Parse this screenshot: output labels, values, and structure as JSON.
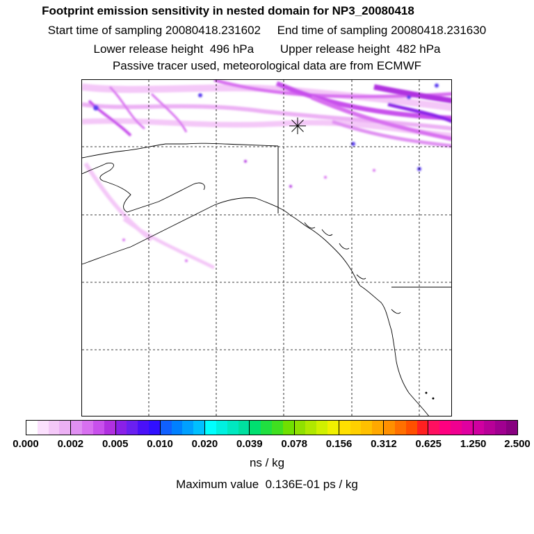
{
  "header": {
    "title": "Footprint emission sensitivity in nested domain for NP3_20080418",
    "sampling_line": "Start time of sampling 20080418.231602     End time of sampling 20080418.231630",
    "release_line": "Lower release height  496 hPa        Upper release height  482 hPa",
    "tracer_line": "Passive tracer used, meteorological data are from ECMWF"
  },
  "map": {
    "release_marker": "asterisk-release-point",
    "colors": {
      "land_outline": "#000000",
      "plume_light": "#f4c8f8",
      "plume_mid": "#d870f0",
      "plume_dark": "#b030e0",
      "plume_blue": "#5a3cf0"
    }
  },
  "legend": {
    "tick_labels": [
      "0.000",
      "0.002",
      "0.005",
      "0.010",
      "0.020",
      "0.039",
      "0.078",
      "0.156",
      "0.312",
      "0.625",
      "1.250",
      "2.500"
    ],
    "segments": [
      [
        "#ffffff",
        "#fbe0fd",
        "#f4c8f8",
        "#ecb0f4"
      ],
      [
        "#e090f2",
        "#d870f0",
        "#c850ec",
        "#b030e0"
      ],
      [
        "#8a20e8",
        "#6a20f0",
        "#4a10f8",
        "#3010ff"
      ],
      [
        "#1060ff",
        "#0080ff",
        "#00a0ff",
        "#00c0ff"
      ],
      [
        "#00ffff",
        "#00f0e0",
        "#00e8c0",
        "#00e0a0"
      ],
      [
        "#00e070",
        "#20e040",
        "#40e020",
        "#70e000"
      ],
      [
        "#90e000",
        "#b0e800",
        "#d0f000",
        "#f0f000"
      ],
      [
        "#ffe000",
        "#ffd000",
        "#ffc000",
        "#ffa800"
      ],
      [
        "#ff9000",
        "#ff7000",
        "#ff5000",
        "#ff2020"
      ],
      [
        "#ff1060",
        "#ff0080",
        "#f00090",
        "#e000a0"
      ],
      [
        "#d000a0",
        "#b80098",
        "#a00090",
        "#880080"
      ]
    ],
    "units": "ns / kg",
    "max_value": "Maximum value  0.136E-01 ps / kg"
  }
}
